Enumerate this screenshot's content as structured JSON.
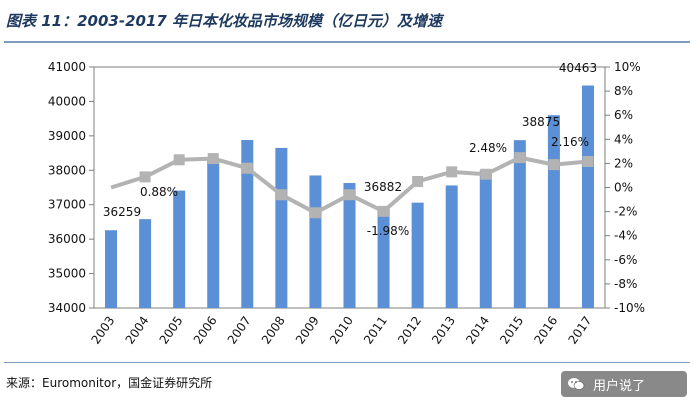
{
  "header": {
    "title": "图表 11：2003-2017 年日本化妆品市场规模（亿日元）及增速"
  },
  "footer": {
    "source": "来源：Euromonitor，国金证券研究所",
    "watermark": "用户说了",
    "watermark_icon": "wechat-icon"
  },
  "colors": {
    "bar": "#5b8fd6",
    "line": "#b3b3b3",
    "title": "#1f3a5f",
    "rule": "#7f9bbf"
  },
  "chart_data": {
    "type": "bar",
    "categories": [
      "2003",
      "2004",
      "2005",
      "2006",
      "2007",
      "2008",
      "2009",
      "2010",
      "2011",
      "2012",
      "2013",
      "2014",
      "2015",
      "2016",
      "2017"
    ],
    "series": [
      {
        "type": "bar",
        "axis": "left",
        "values": [
          36259,
          36580,
          37410,
          38320,
          38880,
          38650,
          37850,
          37630,
          36882,
          37060,
          37560,
          38000,
          38875,
          39600,
          40463
        ]
      },
      {
        "type": "line",
        "axis": "right",
        "values": [
          0.0,
          0.88,
          2.3,
          2.4,
          1.6,
          -0.6,
          -2.1,
          -0.6,
          -1.98,
          0.5,
          1.3,
          1.1,
          2.48,
          1.9,
          2.16
        ]
      }
    ],
    "ylim_left": [
      34000,
      41000
    ],
    "yticks_left": [
      "34000",
      "35000",
      "36000",
      "37000",
      "38000",
      "39000",
      "40000",
      "41000"
    ],
    "ylim_right": [
      -10,
      10
    ],
    "yticks_right": [
      "-10%",
      "-8%",
      "-6%",
      "-4%",
      "-2%",
      "0%",
      "2%",
      "4%",
      "6%",
      "8%",
      "10%"
    ],
    "data_labels": [
      {
        "text": "36259"
      },
      {
        "text": "0.88%"
      },
      {
        "text": "36882"
      },
      {
        "text": "-1.98%"
      },
      {
        "text": "2.48%"
      },
      {
        "text": "38875"
      },
      {
        "text": "2.16%"
      },
      {
        "text": "40463"
      }
    ],
    "grid": false,
    "legend": "none"
  }
}
